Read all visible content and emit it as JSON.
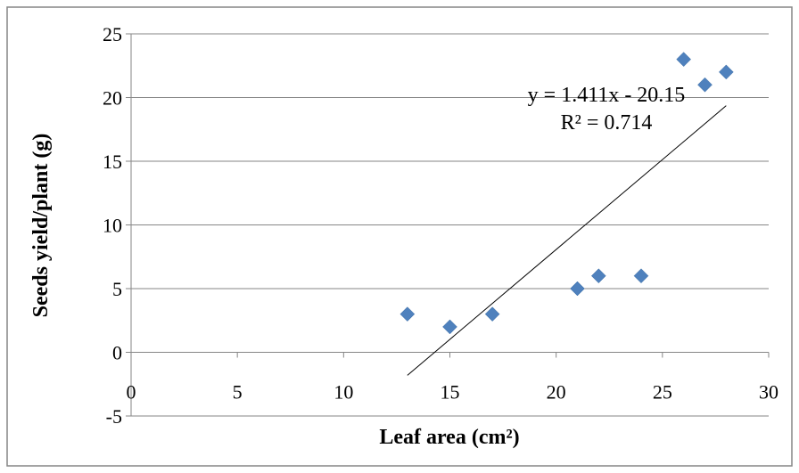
{
  "chart_data": {
    "type": "scatter",
    "title": "",
    "xlabel": "Leaf area (cm²)",
    "ylabel": "Seeds yield/plant (g)",
    "xlim": [
      0,
      30
    ],
    "ylim": [
      -5,
      25
    ],
    "xticks": [
      0,
      5,
      10,
      15,
      20,
      25,
      30
    ],
    "yticks": [
      -5,
      0,
      5,
      10,
      15,
      20,
      25
    ],
    "grid": "horizontal",
    "marker": "diamond",
    "marker_color": "#4F81BD",
    "points": [
      {
        "x": 13,
        "y": 3
      },
      {
        "x": 15,
        "y": 2
      },
      {
        "x": 17,
        "y": 3
      },
      {
        "x": 21,
        "y": 5
      },
      {
        "x": 22,
        "y": 6
      },
      {
        "x": 24,
        "y": 6
      },
      {
        "x": 26,
        "y": 23
      },
      {
        "x": 27,
        "y": 21
      },
      {
        "x": 28,
        "y": 22
      }
    ],
    "trendline": {
      "type": "linear",
      "slope": 1.411,
      "intercept": -20.15,
      "x_range": [
        13,
        28
      ],
      "equation_label": "y = 1.411x - 20.15",
      "r2_label": "R² = 0.714"
    }
  }
}
